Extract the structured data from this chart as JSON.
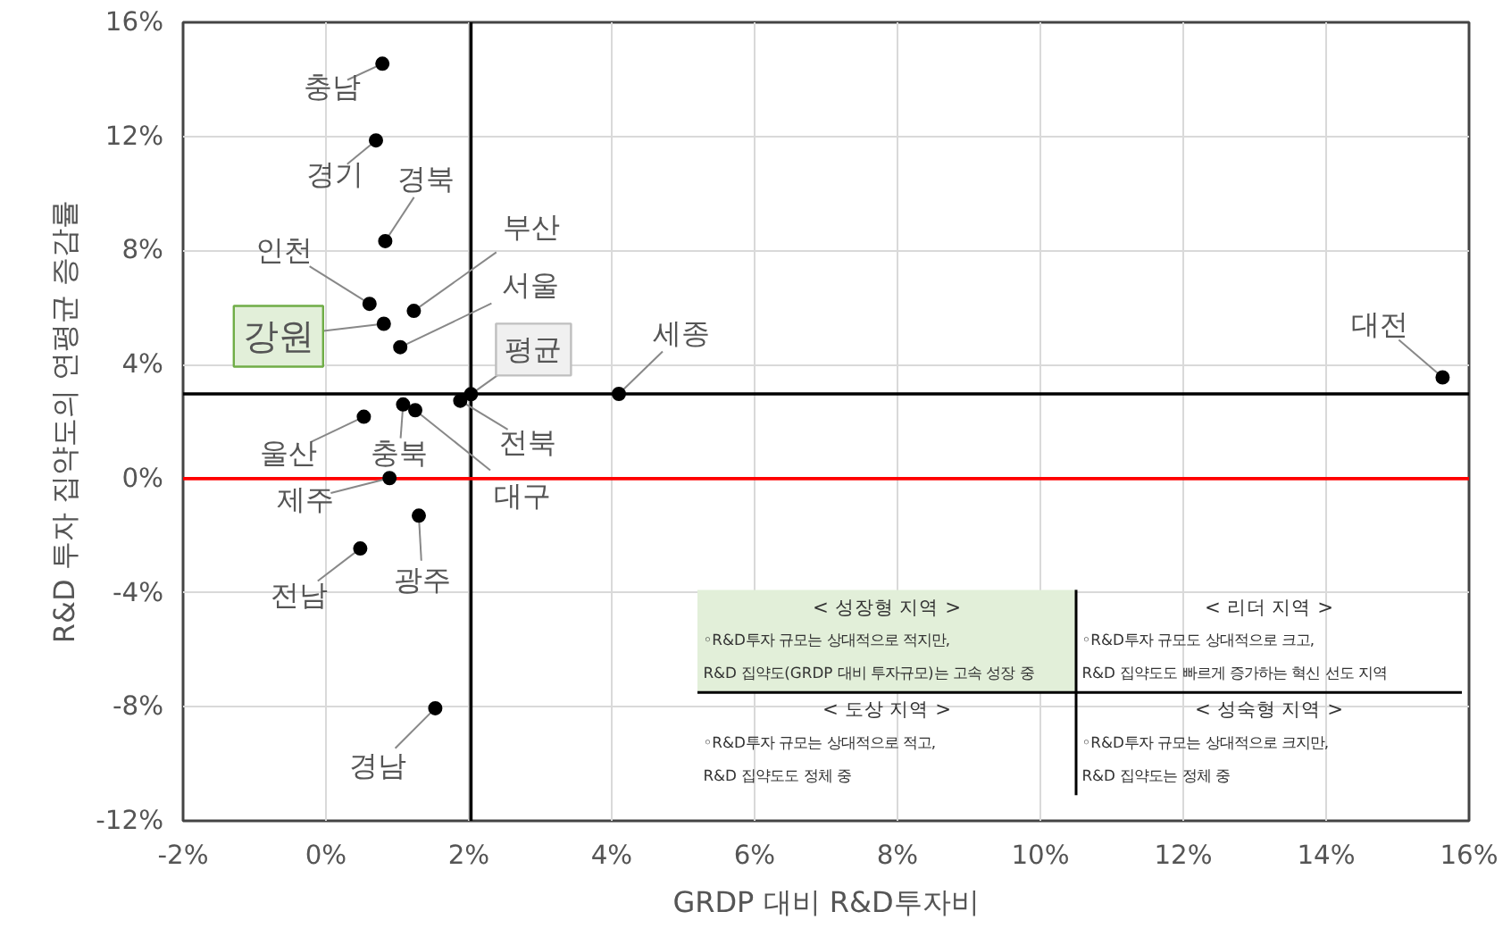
{
  "chart_data": {
    "type": "scatter",
    "xlabel": "GRDP 대비 R&D투자비",
    "ylabel": "R&D 투자 집약도의 연평균 증감률",
    "x": [
      0.79,
      0.7,
      0.83,
      0.61,
      0.81,
      1.23,
      1.04,
      2.03,
      4.1,
      15.63,
      0.53,
      1.08,
      1.25,
      1.88,
      0.89,
      1.3,
      0.48,
      1.53
    ],
    "series": [
      {
        "color": "#000000",
        "values": [
          14.55,
          11.86,
          8.33,
          6.13,
          5.43,
          5.88,
          4.61,
          2.96,
          2.97,
          3.55,
          2.17,
          2.6,
          2.4,
          2.73,
          0.02,
          -1.3,
          -2.45,
          -8.05
        ]
      }
    ],
    "marker": "circle",
    "grid": true,
    "xlim": [
      -2,
      16
    ],
    "ylim": [
      -12,
      16
    ],
    "xticks": [
      {
        "value": -2,
        "label": "-2%"
      },
      {
        "value": 0,
        "label": "0%"
      },
      {
        "value": 2,
        "label": "2%"
      },
      {
        "value": 4,
        "label": "4%"
      },
      {
        "value": 6,
        "label": "6%"
      },
      {
        "value": 8,
        "label": "8%"
      },
      {
        "value": 10,
        "label": "10%"
      },
      {
        "value": 12,
        "label": "12%"
      },
      {
        "value": 14,
        "label": "14%"
      },
      {
        "value": 16,
        "label": "16%"
      }
    ],
    "yticks": [
      {
        "value": -12,
        "label": "-12%"
      },
      {
        "value": -8,
        "label": "-8%"
      },
      {
        "value": -4,
        "label": "-4%"
      },
      {
        "value": 0,
        "label": "0%"
      },
      {
        "value": 4,
        "label": "4%"
      },
      {
        "value": 8,
        "label": "8%"
      },
      {
        "value": 12,
        "label": "12%"
      },
      {
        "value": 16,
        "label": "16%"
      }
    ],
    "ref_lines": [
      {
        "axis": "x",
        "value": 2.03,
        "color": "#000000"
      },
      {
        "axis": "y",
        "value": 2.97,
        "color": "#000000"
      },
      {
        "axis": "y",
        "value": 0,
        "color": "#ff0000"
      }
    ],
    "annotations": [
      {
        "text": "충남",
        "x": 0.79,
        "y": 14.55
      },
      {
        "text": "경기",
        "x": 0.7,
        "y": 11.86
      },
      {
        "text": "경북",
        "x": 0.83,
        "y": 8.33
      },
      {
        "text": "인천",
        "x": 0.61,
        "y": 6.13
      },
      {
        "text": "강원",
        "x": 0.81,
        "y": 5.43
      },
      {
        "text": "부산",
        "x": 1.23,
        "y": 5.88
      },
      {
        "text": "서울",
        "x": 1.04,
        "y": 4.61
      },
      {
        "text": "평균",
        "x": 2.03,
        "y": 2.96
      },
      {
        "text": "세종",
        "x": 4.1,
        "y": 2.97
      },
      {
        "text": "대전",
        "x": 15.63,
        "y": 3.55
      },
      {
        "text": "울산",
        "x": 0.53,
        "y": 2.17
      },
      {
        "text": "충북",
        "x": 1.08,
        "y": 2.6
      },
      {
        "text": "대구",
        "x": 1.25,
        "y": 2.4
      },
      {
        "text": "전북",
        "x": 1.88,
        "y": 2.73
      },
      {
        "text": "제주",
        "x": 0.89,
        "y": 0.02
      },
      {
        "text": "광주",
        "x": 1.3,
        "y": -1.3
      },
      {
        "text": "전남",
        "x": 0.48,
        "y": -2.45
      },
      {
        "text": "경남",
        "x": 1.53,
        "y": -8.05
      },
      "< 성장형 지역 >\n◦R&D투자 규모는 상대적으로 적지만,\nR&D 집약도(GRDP 대비 투자규모)는 고속 성장 중",
      "< 리더 지역 >\n◦R&D투자 규모도 상대적으로 크고,\nR&D 집약도도 빠르게 증가하는 혁신 선도 지역",
      "< 도상 지역 >\n◦R&D투자 규모는 상대적으로 적고,\nR&D 집약도도 정체 중",
      "< 성숙형 지역 >\n◦R&D투자 규모는 상대적으로 크지만,\nR&D 집약도는 정체 중"
    ]
  }
}
